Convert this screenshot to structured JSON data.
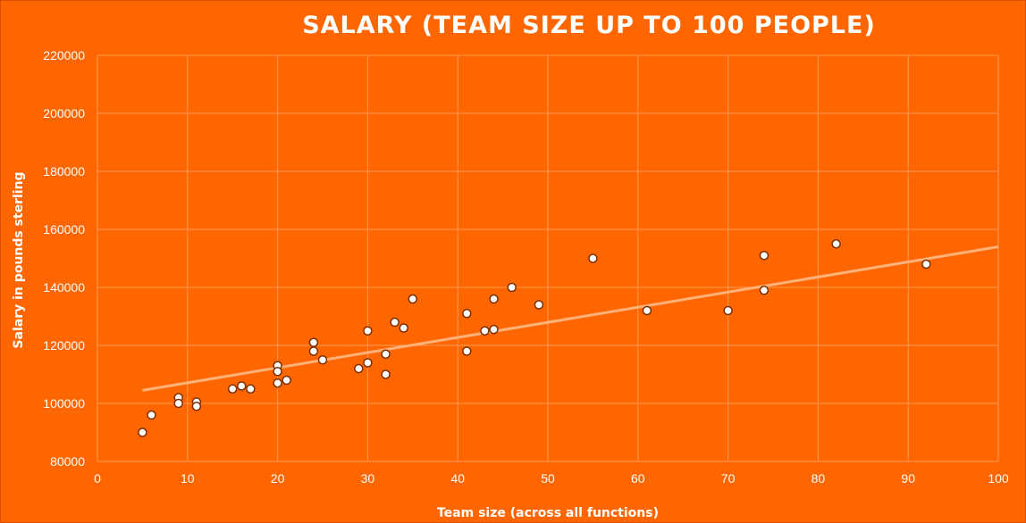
{
  "chart_data": {
    "type": "scatter",
    "title": "SALARY (TEAM SIZE UP TO 100 PEOPLE)",
    "xlabel": "Team size  (across all functions)",
    "ylabel": "Salary in pounds sterling",
    "xlim": [
      0,
      100
    ],
    "ylim": [
      80000,
      220000
    ],
    "xticks": [
      0,
      10,
      20,
      30,
      40,
      50,
      60,
      70,
      80,
      90,
      100
    ],
    "yticks": [
      80000,
      100000,
      120000,
      140000,
      160000,
      180000,
      200000,
      220000
    ],
    "grid": true,
    "legend": "none",
    "colors": {
      "background": "#ff6600",
      "grid": "#ff9a55",
      "marker_fill": "#ffffff",
      "marker_stroke": "#7a2e00",
      "trendline": "#ffb27a"
    },
    "points": [
      [
        5,
        90000
      ],
      [
        6,
        96000
      ],
      [
        9,
        102000
      ],
      [
        9,
        100000
      ],
      [
        11,
        100500
      ],
      [
        11,
        99000
      ],
      [
        15,
        105000
      ],
      [
        16,
        106000
      ],
      [
        17,
        105000
      ],
      [
        20,
        113000
      ],
      [
        20,
        111000
      ],
      [
        20,
        107000
      ],
      [
        21,
        108000
      ],
      [
        24,
        121000
      ],
      [
        24,
        118000
      ],
      [
        25,
        115000
      ],
      [
        29,
        112000
      ],
      [
        30,
        125000
      ],
      [
        30,
        114000
      ],
      [
        32,
        117000
      ],
      [
        32,
        110000
      ],
      [
        33,
        128000
      ],
      [
        34,
        126000
      ],
      [
        35,
        136000
      ],
      [
        41,
        131000
      ],
      [
        41,
        118000
      ],
      [
        43,
        125000
      ],
      [
        44,
        136000
      ],
      [
        44,
        125500
      ],
      [
        46,
        140000
      ],
      [
        49,
        134000
      ],
      [
        55,
        150000
      ],
      [
        61,
        132000
      ],
      [
        70,
        132000
      ],
      [
        74,
        151000
      ],
      [
        74,
        139000
      ],
      [
        82,
        155000
      ],
      [
        92,
        148000
      ]
    ],
    "trendline": {
      "type": "linear",
      "x": [
        5,
        100
      ],
      "y": [
        104500,
        154000
      ]
    }
  }
}
